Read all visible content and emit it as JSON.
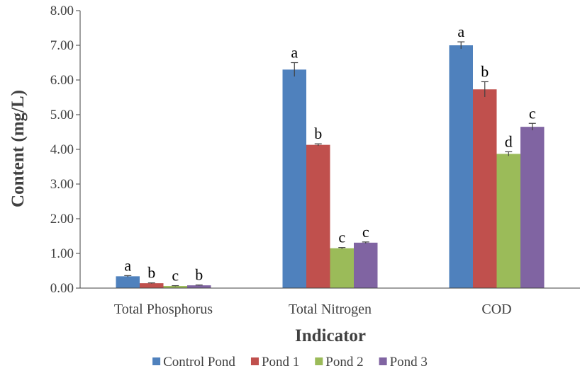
{
  "colors": {
    "series": [
      "#4f81bd",
      "#c0504d",
      "#9bbb59",
      "#8064a2"
    ],
    "axis": "#404040",
    "text": "#404040",
    "error_bar": "#404040"
  },
  "chart_data": {
    "type": "bar",
    "title": "",
    "xlabel": "Indicator",
    "ylabel": "Content (mg/L)",
    "ylim": [
      0,
      8
    ],
    "ytick_step": 1,
    "ytick_labels": [
      "0.00",
      "1.00",
      "2.00",
      "3.00",
      "4.00",
      "5.00",
      "6.00",
      "7.00",
      "8.00"
    ],
    "grid": false,
    "legend_position": "bottom",
    "categories": [
      "Total Phosphorus",
      "Total Nitrogen",
      "COD"
    ],
    "series": [
      {
        "name": "Control Pond",
        "values": [
          0.34,
          6.3,
          7.0
        ],
        "errors": [
          0.02,
          0.2,
          0.1
        ],
        "labels": [
          "a",
          "a",
          "a"
        ]
      },
      {
        "name": "Pond 1",
        "values": [
          0.14,
          4.13,
          5.73
        ],
        "errors": [
          0.01,
          0.03,
          0.22
        ],
        "labels": [
          "b",
          "b",
          "b"
        ]
      },
      {
        "name": "Pond 2",
        "values": [
          0.06,
          1.15,
          3.87
        ],
        "errors": [
          0.01,
          0.02,
          0.06
        ],
        "labels": [
          "c",
          "c",
          "d"
        ]
      },
      {
        "name": "Pond 3",
        "values": [
          0.08,
          1.31,
          4.65
        ],
        "errors": [
          0.01,
          0.02,
          0.1
        ],
        "labels": [
          "b",
          "c",
          "c"
        ]
      }
    ]
  }
}
